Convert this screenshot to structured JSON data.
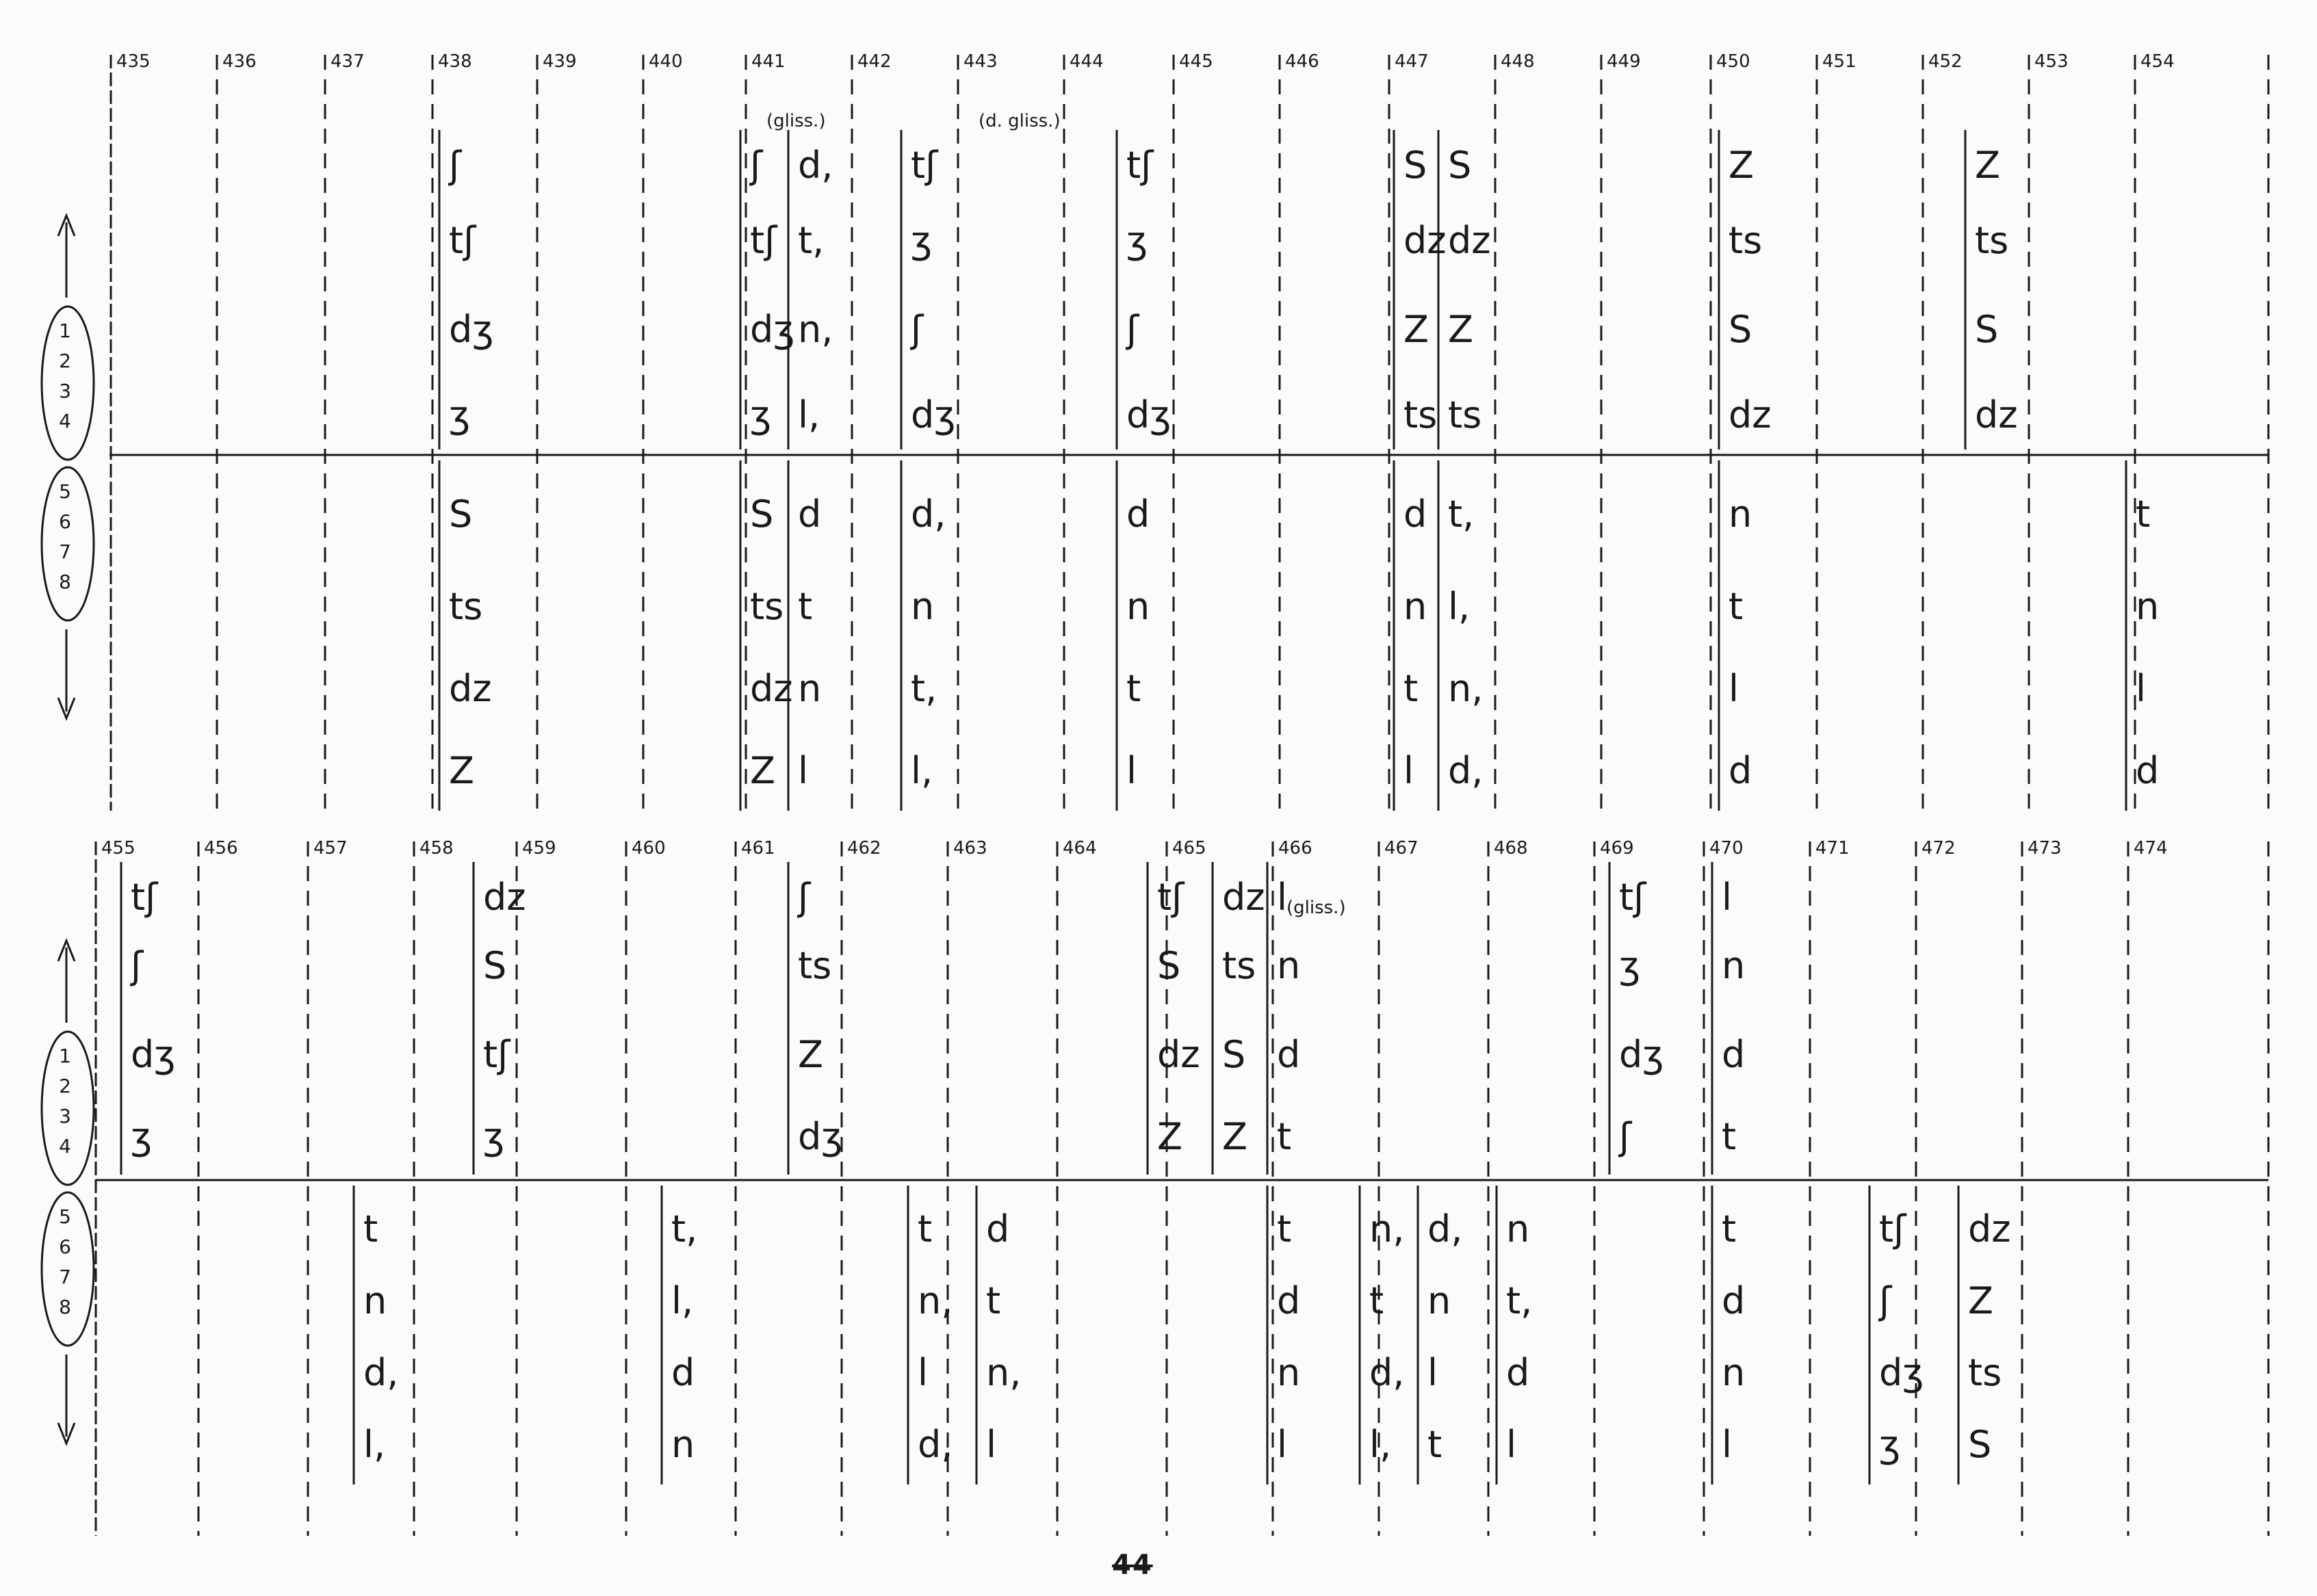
{
  "page": {
    "page_number": "44",
    "note": "Handwritten graphic score page for 8 voices (speech sounds).",
    "colors": {
      "ink": "#1a1a1a",
      "paper": "#fbfbfa"
    }
  },
  "systems": [
    {
      "name": "system-1",
      "measure_numbers": [
        "435",
        "436",
        "437",
        "438",
        "439",
        "440",
        "441",
        "442",
        "443",
        "444",
        "445",
        "446",
        "447",
        "448",
        "449",
        "450",
        "451",
        "452",
        "453",
        "454"
      ],
      "voice_legend": {
        "upper": [
          "1",
          "2",
          "3",
          "4"
        ],
        "lower": [
          "5",
          "6",
          "7",
          "8"
        ]
      },
      "markings": [
        {
          "measure": "441",
          "text": "(gliss.)"
        },
        {
          "measure": "443",
          "text": "(d. gliss.)"
        }
      ],
      "events": [
        {
          "measure": "438",
          "upper": [
            "ʃ",
            "tʃ",
            "dʒ",
            "ʒ"
          ],
          "lower": [
            "S",
            "ts",
            "dz",
            "Z"
          ]
        },
        {
          "measure": "441",
          "upper": [
            "ʃ",
            "tʃ",
            "dʒ",
            "ʒ"
          ],
          "lower": [
            "S",
            "ts",
            "dz",
            "Z"
          ]
        },
        {
          "measure": "441b",
          "upper": [
            "d,",
            "t,",
            "n,",
            "l,"
          ],
          "lower": [
            "d",
            "t",
            "n",
            "l"
          ]
        },
        {
          "measure": "442",
          "upper": [
            "tʃ",
            "ʒ",
            "ʃ",
            "dʒ"
          ],
          "lower": [
            "d,",
            "n",
            "t,",
            "l,"
          ]
        },
        {
          "measure": "444",
          "upper": [
            "tʃ",
            "ʒ",
            "ʃ",
            "dʒ"
          ],
          "lower": [
            "d",
            "n",
            "t",
            "l"
          ]
        },
        {
          "measure": "447",
          "upper": [
            "S",
            "dz",
            "Z",
            "ts"
          ],
          "lower": [
            "d",
            "n",
            "t",
            "l"
          ]
        },
        {
          "measure": "447b",
          "upper": [
            "S",
            "dz",
            "Z",
            "ts"
          ],
          "lower": [
            "t,",
            "l,",
            "n,",
            "d,"
          ]
        },
        {
          "measure": "450",
          "upper": [
            "Z",
            "ts",
            "S",
            "dz"
          ],
          "lower": [
            "n",
            "t",
            "l",
            "d"
          ]
        },
        {
          "measure": "452",
          "upper": [
            "Z",
            "ts",
            "S",
            "dz"
          ],
          "lower": []
        },
        {
          "measure": "454",
          "upper": [],
          "lower": [
            "t",
            "n",
            "l",
            "d"
          ]
        }
      ]
    },
    {
      "name": "system-2",
      "measure_numbers": [
        "455",
        "456",
        "457",
        "458",
        "459",
        "460",
        "461",
        "462",
        "463",
        "464",
        "465",
        "466",
        "467",
        "468",
        "469",
        "470",
        "471",
        "472",
        "473",
        "474"
      ],
      "voice_legend": {
        "upper": [
          "1",
          "2",
          "3",
          "4"
        ],
        "lower": [
          "5",
          "6",
          "7",
          "8"
        ]
      },
      "markings": [
        {
          "measure": "466",
          "text": "(gliss.)"
        }
      ],
      "events": [
        {
          "measure": "455",
          "upper": [
            "tʃ",
            "ʃ",
            "dʒ",
            "ʒ"
          ],
          "lower": []
        },
        {
          "measure": "457",
          "upper": [],
          "lower": [
            "t",
            "n",
            "d,",
            "l,"
          ]
        },
        {
          "measure": "458",
          "upper": [
            "dz",
            "S",
            "tʃ",
            "ʒ"
          ],
          "lower": []
        },
        {
          "measure": "460",
          "upper": [],
          "lower": [
            "t,",
            "l,",
            "d",
            "n"
          ]
        },
        {
          "measure": "461",
          "upper": [
            "ʃ",
            "ts",
            "Z",
            "dʒ"
          ],
          "lower": []
        },
        {
          "measure": "462",
          "upper": [],
          "lower": [
            "t",
            "n,",
            "l",
            "d,"
          ]
        },
        {
          "measure": "463",
          "upper": [],
          "lower": [
            "d",
            "t",
            "n,",
            "l"
          ]
        },
        {
          "measure": "465",
          "upper": [
            "tʃ",
            "S",
            "dz",
            "Z"
          ],
          "lower": []
        },
        {
          "measure": "465b",
          "upper": [
            "dz",
            "ts",
            "S",
            "Z"
          ],
          "lower": []
        },
        {
          "measure": "466",
          "upper": [
            "l",
            "n",
            "d",
            "t"
          ],
          "lower": [
            "t",
            "d",
            "n",
            "l"
          ]
        },
        {
          "measure": "467",
          "upper": [],
          "lower": [
            "n,",
            "t",
            "d,",
            "l,"
          ]
        },
        {
          "measure": "467b",
          "upper": [],
          "lower": [
            "d,",
            "n",
            "l",
            "t"
          ]
        },
        {
          "measure": "468",
          "upper": [],
          "lower": [
            "n",
            "t,",
            "d",
            "l"
          ]
        },
        {
          "measure": "469",
          "upper": [
            "tʃ",
            "ʒ",
            "dʒ",
            "ʃ"
          ],
          "lower": []
        },
        {
          "measure": "470",
          "upper": [
            "l",
            "n",
            "d",
            "t"
          ],
          "lower": [
            "t",
            "d",
            "n",
            "l"
          ]
        },
        {
          "measure": "471",
          "upper": [],
          "lower": [
            "tʃ",
            "ʃ",
            "dʒ",
            "ʒ"
          ]
        },
        {
          "measure": "472",
          "upper": [],
          "lower": [
            "dz",
            "Z",
            "ts",
            "S"
          ]
        }
      ]
    }
  ]
}
